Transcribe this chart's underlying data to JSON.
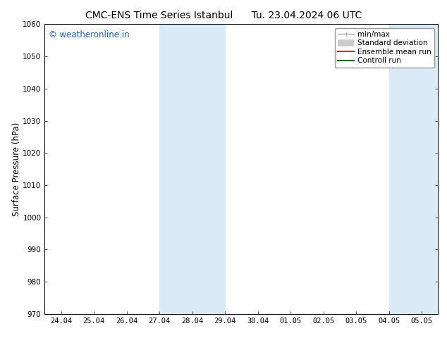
{
  "title_left": "CMC-ENS Time Series Istanbul",
  "title_right": "Tu. 23.04.2024 06 UTC",
  "ylabel": "Surface Pressure (hPa)",
  "ylim": [
    970,
    1060
  ],
  "yticks": [
    970,
    980,
    990,
    1000,
    1010,
    1020,
    1030,
    1040,
    1050,
    1060
  ],
  "xtick_labels": [
    "24.04",
    "25.04",
    "26.04",
    "27.04",
    "28.04",
    "29.04",
    "30.04",
    "01.05",
    "02.05",
    "03.05",
    "04.05",
    "05.05"
  ],
  "xlim_days": [
    0,
    11
  ],
  "shaded_regions": [
    {
      "xmin": 3.0,
      "xmax": 5.0
    },
    {
      "xmin": 10.0,
      "xmax": 11.5
    }
  ],
  "shade_color": "#daeaf7",
  "background_color": "#ffffff",
  "watermark_text": "© weatheronline.in",
  "watermark_color": "#1a5fcc",
  "legend_items": [
    {
      "label": "min/max",
      "color": "#aaaaaa",
      "lw": 1.0
    },
    {
      "label": "Standard deviation",
      "color": "#cccccc",
      "lw": 7
    },
    {
      "label": "Ensemble mean run",
      "color": "#ff0000",
      "lw": 1.5
    },
    {
      "label": "Controll run",
      "color": "#006600",
      "lw": 1.5
    }
  ],
  "title_fontsize": 10,
  "tick_fontsize": 7.5,
  "ylabel_fontsize": 8.5,
  "watermark_fontsize": 8.5,
  "legend_fontsize": 7.5
}
